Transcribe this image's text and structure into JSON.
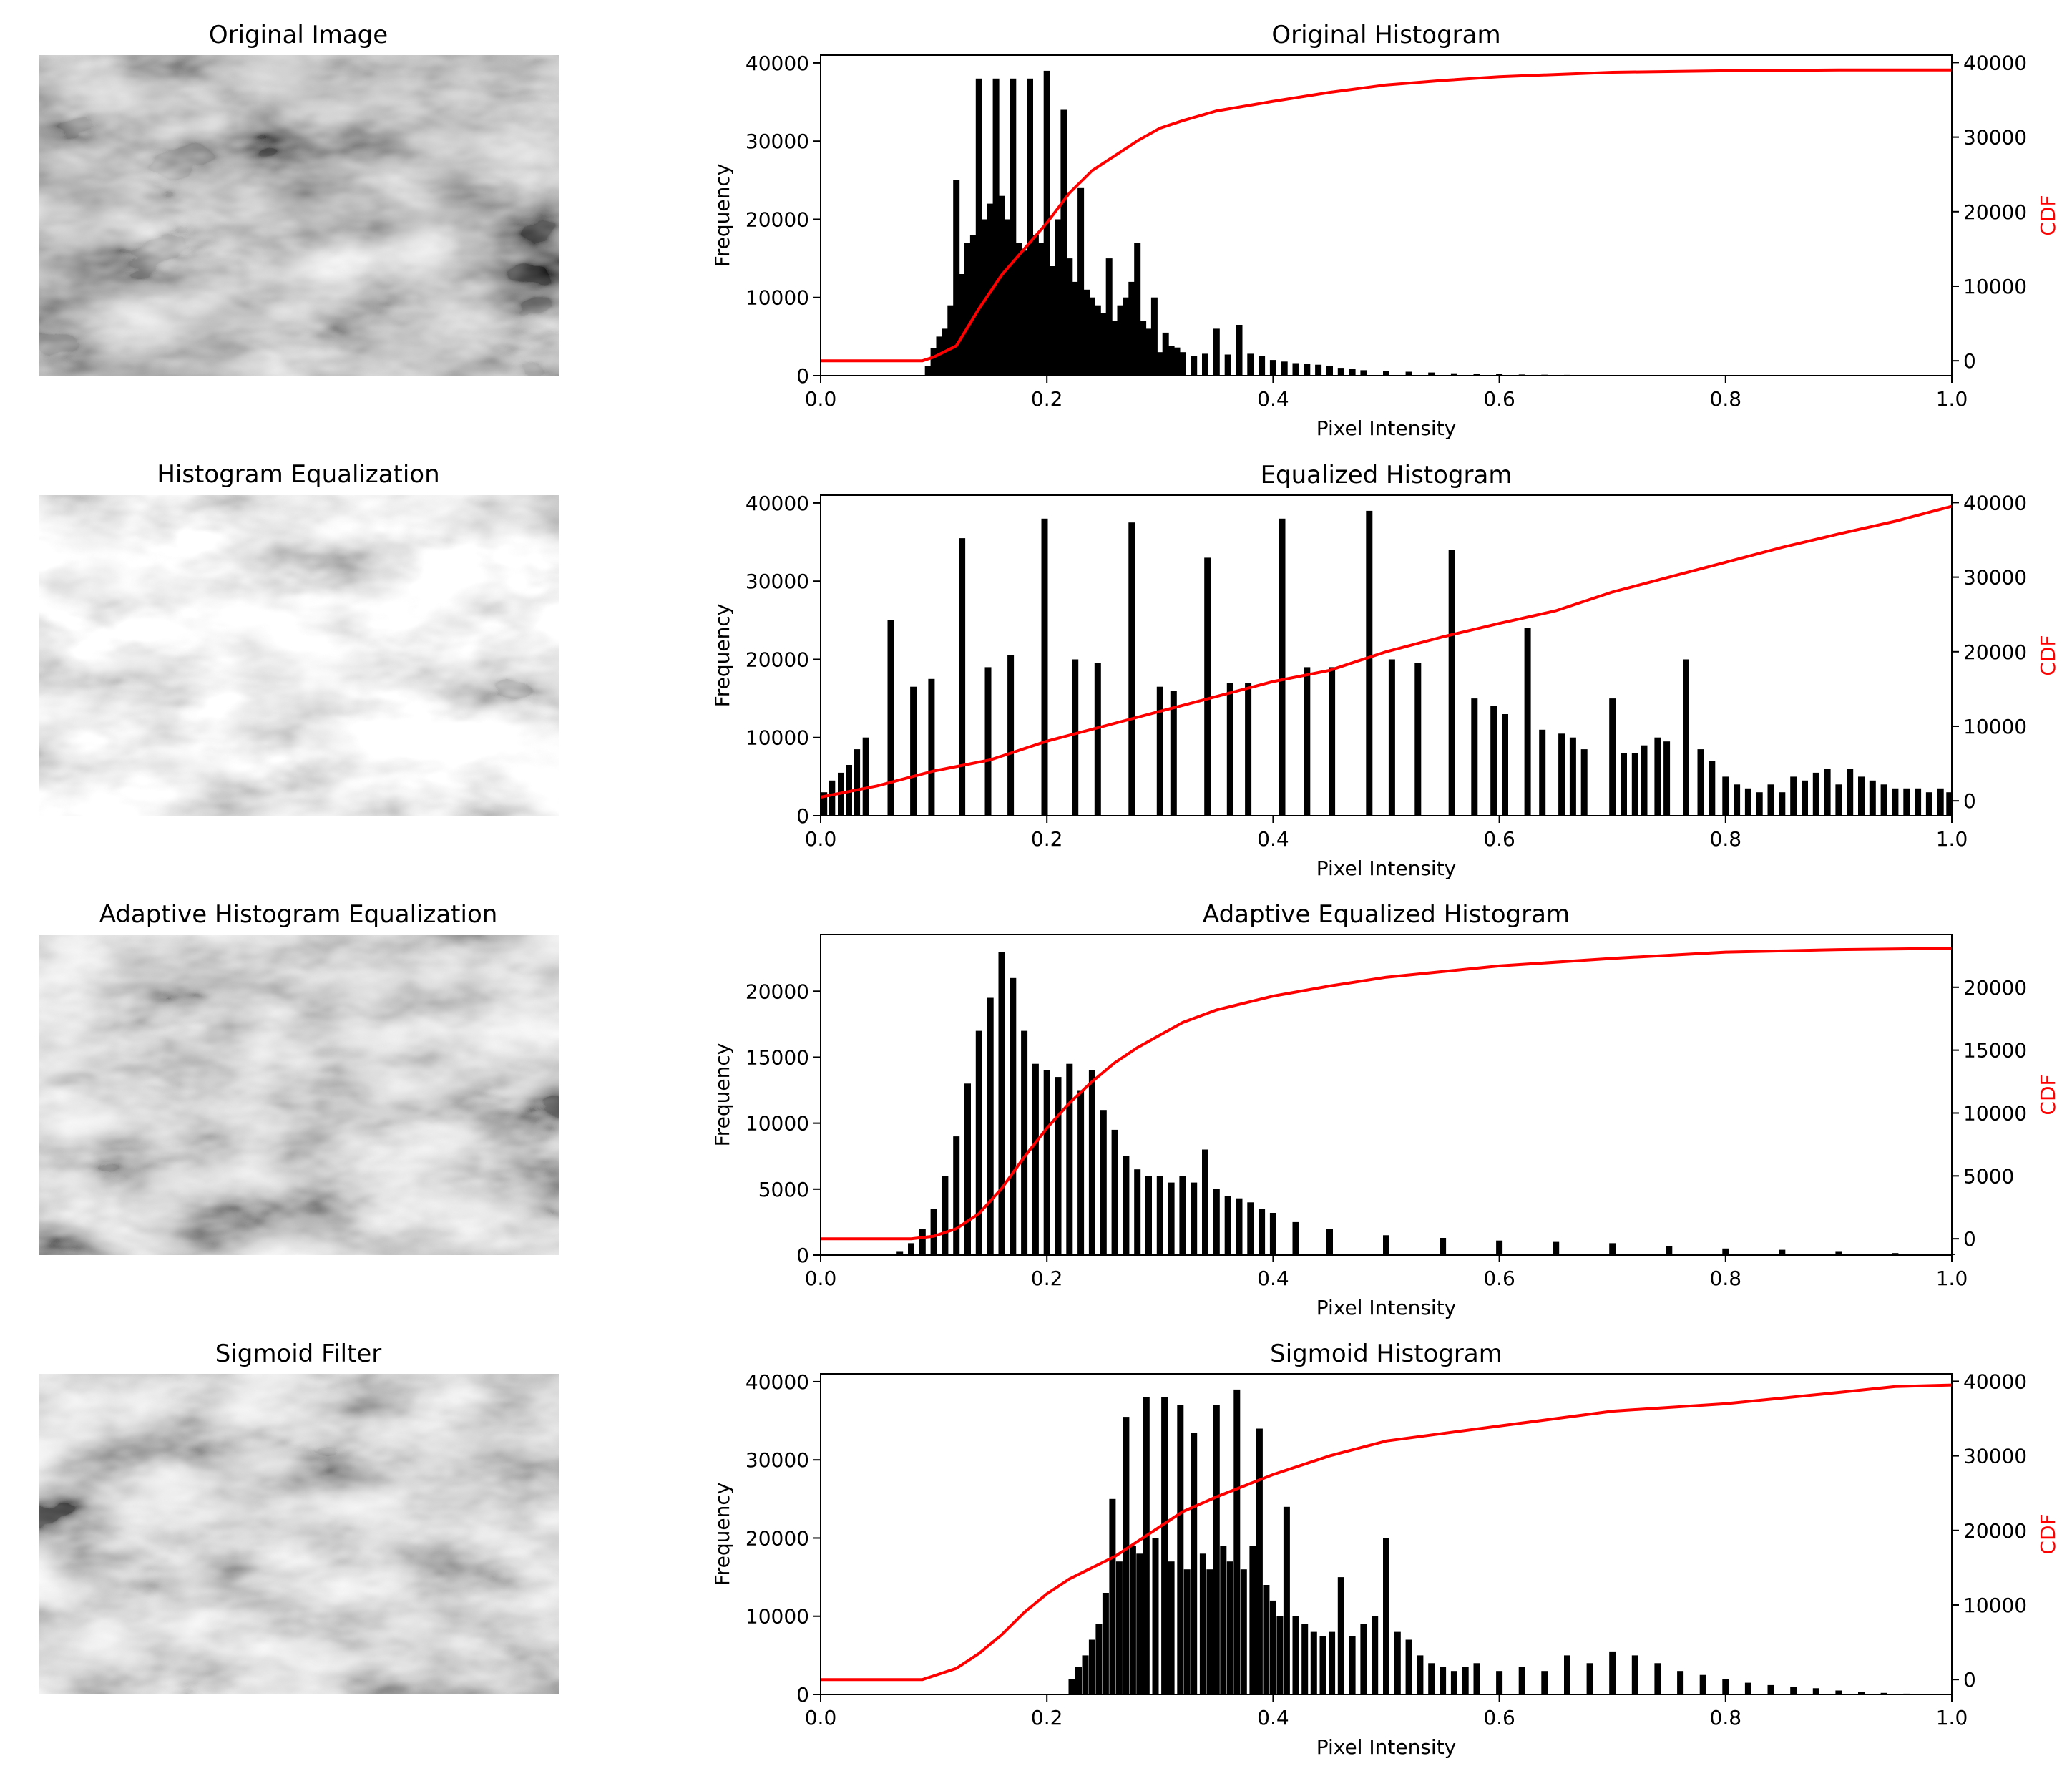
{
  "figure": {
    "background": "#ffffff",
    "bar_color": "#000000",
    "cdf_color": "#ff0000"
  },
  "image_panels": [
    {
      "title": "Original Image",
      "style": "dark"
    },
    {
      "title": "Histogram Equalization",
      "style": "bright"
    },
    {
      "title": "Adaptive Histogram Equalization",
      "style": "medium"
    },
    {
      "title": "Sigmoid Filter",
      "style": "medium"
    }
  ],
  "chart_data": [
    {
      "type": "bar",
      "title": "Original Histogram",
      "xlabel": "Pixel Intensity",
      "ylabel": "Frequency",
      "ylabel2": "CDF",
      "xlim": [
        0.0,
        1.0
      ],
      "ylim": [
        0,
        41000
      ],
      "y2lim": [
        -2000,
        41000
      ],
      "xticks": [
        "0.0",
        "0.2",
        "0.4",
        "0.6",
        "0.8",
        "1.0"
      ],
      "yticks": [
        0,
        10000,
        20000,
        30000,
        40000
      ],
      "y2ticks": [
        0,
        10000,
        20000,
        30000,
        40000
      ],
      "series": [
        {
          "name": "histogram",
          "x": [
            0.095,
            0.1,
            0.105,
            0.11,
            0.115,
            0.12,
            0.125,
            0.13,
            0.135,
            0.14,
            0.145,
            0.15,
            0.155,
            0.16,
            0.165,
            0.17,
            0.175,
            0.18,
            0.185,
            0.19,
            0.195,
            0.2,
            0.205,
            0.21,
            0.215,
            0.22,
            0.225,
            0.23,
            0.235,
            0.24,
            0.245,
            0.25,
            0.255,
            0.26,
            0.265,
            0.27,
            0.275,
            0.28,
            0.285,
            0.29,
            0.295,
            0.3,
            0.305,
            0.31,
            0.315,
            0.32,
            0.33,
            0.34,
            0.35,
            0.36,
            0.37,
            0.38,
            0.39,
            0.4,
            0.41,
            0.42,
            0.43,
            0.44,
            0.45,
            0.46,
            0.47,
            0.48,
            0.5,
            0.52,
            0.54,
            0.56,
            0.58,
            0.6,
            0.62,
            0.64,
            0.66,
            0.68,
            0.7,
            0.72,
            0.75,
            0.78,
            0.8,
            0.82
          ],
          "values": [
            1200,
            3500,
            5000,
            6000,
            9000,
            25000,
            13000,
            17000,
            18000,
            38000,
            20000,
            22000,
            38000,
            23000,
            20000,
            38000,
            17000,
            16000,
            38000,
            18000,
            17000,
            39000,
            14000,
            20000,
            34000,
            15000,
            12000,
            24000,
            11000,
            10000,
            9000,
            8000,
            15000,
            7000,
            9000,
            10000,
            12000,
            17000,
            7000,
            6000,
            10000,
            3000,
            5500,
            3800,
            3600,
            3000,
            2500,
            2800,
            6000,
            2700,
            6500,
            2800,
            2500,
            2000,
            1800,
            1600,
            1500,
            1400,
            1200,
            1000,
            900,
            700,
            600,
            500,
            400,
            300,
            250,
            200,
            150,
            120,
            100,
            80,
            60,
            50,
            30,
            20,
            10,
            5
          ]
        },
        {
          "name": "CDF",
          "x": [
            0.0,
            0.09,
            0.1,
            0.12,
            0.14,
            0.16,
            0.18,
            0.2,
            0.22,
            0.24,
            0.26,
            0.28,
            0.3,
            0.32,
            0.35,
            0.4,
            0.45,
            0.5,
            0.55,
            0.6,
            0.7,
            0.8,
            0.9,
            1.0
          ],
          "values": [
            0,
            0,
            500,
            2000,
            7000,
            11500,
            15000,
            18500,
            22500,
            25500,
            27500,
            29500,
            31200,
            32200,
            33500,
            34800,
            36000,
            37000,
            37600,
            38100,
            38700,
            38900,
            39000,
            39000
          ]
        }
      ]
    },
    {
      "type": "bar",
      "title": "Equalized Histogram",
      "xlabel": "Pixel Intensity",
      "ylabel": "Frequency",
      "ylabel2": "CDF",
      "xlim": [
        0.0,
        1.0
      ],
      "ylim": [
        0,
        41000
      ],
      "y2lim": [
        -2000,
        41000
      ],
      "xticks": [
        "0.0",
        "0.2",
        "0.4",
        "0.6",
        "0.8",
        "1.0"
      ],
      "yticks": [
        0,
        10000,
        20000,
        30000,
        40000
      ],
      "y2ticks": [
        0,
        10000,
        20000,
        30000,
        40000
      ],
      "series": [
        {
          "name": "histogram",
          "x": [
            0.003,
            0.01,
            0.018,
            0.025,
            0.032,
            0.04,
            0.062,
            0.082,
            0.098,
            0.125,
            0.148,
            0.168,
            0.198,
            0.225,
            0.245,
            0.275,
            0.3,
            0.312,
            0.342,
            0.362,
            0.378,
            0.408,
            0.43,
            0.452,
            0.485,
            0.505,
            0.528,
            0.558,
            0.578,
            0.595,
            0.605,
            0.625,
            0.638,
            0.655,
            0.665,
            0.675,
            0.7,
            0.71,
            0.72,
            0.728,
            0.74,
            0.748,
            0.765,
            0.778,
            0.788,
            0.8,
            0.81,
            0.82,
            0.83,
            0.84,
            0.85,
            0.86,
            0.87,
            0.88,
            0.89,
            0.9,
            0.91,
            0.92,
            0.93,
            0.94,
            0.95,
            0.96,
            0.97,
            0.98,
            0.99,
            0.998
          ],
          "values": [
            3000,
            4500,
            5500,
            6500,
            8500,
            10000,
            25000,
            16500,
            17500,
            35500,
            19000,
            20500,
            38000,
            20000,
            19500,
            37500,
            16500,
            16000,
            33000,
            17000,
            17000,
            38000,
            19000,
            19000,
            39000,
            20000,
            19500,
            34000,
            15000,
            14000,
            13000,
            24000,
            11000,
            10500,
            10000,
            8500,
            15000,
            8000,
            8000,
            9000,
            10000,
            9500,
            20000,
            8500,
            7000,
            5000,
            4000,
            3500,
            3000,
            4000,
            3000,
            5000,
            4500,
            5500,
            6000,
            4000,
            6000,
            5000,
            4500,
            4000,
            3500,
            3500,
            3500,
            3000,
            3500,
            3000
          ]
        },
        {
          "name": "CDF",
          "x": [
            0.0,
            0.05,
            0.1,
            0.15,
            0.2,
            0.25,
            0.3,
            0.35,
            0.4,
            0.45,
            0.5,
            0.55,
            0.6,
            0.65,
            0.7,
            0.75,
            0.8,
            0.85,
            0.9,
            0.95,
            1.0
          ],
          "values": [
            500,
            2000,
            4000,
            5500,
            8000,
            10000,
            12000,
            14000,
            16000,
            17500,
            20000,
            22000,
            23800,
            25500,
            28000,
            30000,
            32000,
            34000,
            35800,
            37500,
            39500
          ]
        }
      ]
    },
    {
      "type": "bar",
      "title": "Adaptive Equalized Histogram",
      "xlabel": "Pixel Intensity",
      "ylabel": "Frequency",
      "ylabel2": "CDF",
      "xlim": [
        0.0,
        1.0
      ],
      "ylim": [
        0,
        24300
      ],
      "y2lim": [
        -1300,
        24200
      ],
      "xticks": [
        "0.0",
        "0.2",
        "0.4",
        "0.6",
        "0.8",
        "1.0"
      ],
      "yticks": [
        0,
        5000,
        10000,
        15000,
        20000
      ],
      "y2ticks": [
        0,
        5000,
        10000,
        15000,
        20000
      ],
      "series": [
        {
          "name": "histogram",
          "x": [
            0.06,
            0.07,
            0.08,
            0.09,
            0.1,
            0.11,
            0.12,
            0.13,
            0.14,
            0.15,
            0.16,
            0.17,
            0.18,
            0.19,
            0.2,
            0.21,
            0.22,
            0.23,
            0.24,
            0.25,
            0.26,
            0.27,
            0.28,
            0.29,
            0.3,
            0.31,
            0.32,
            0.33,
            0.34,
            0.35,
            0.36,
            0.37,
            0.38,
            0.39,
            0.4,
            0.42,
            0.45,
            0.5,
            0.55,
            0.6,
            0.65,
            0.7,
            0.75,
            0.8,
            0.85,
            0.9,
            0.95,
            1.0
          ],
          "values": [
            100,
            300,
            900,
            2000,
            3500,
            6000,
            9000,
            13000,
            17000,
            19500,
            23000,
            21000,
            17000,
            14500,
            14000,
            13500,
            14500,
            12500,
            14000,
            11000,
            9500,
            7500,
            6500,
            6000,
            6000,
            5500,
            6000,
            5500,
            8000,
            5000,
            4500,
            4300,
            4000,
            3500,
            3200,
            2500,
            2000,
            1500,
            1300,
            1100,
            1000,
            900,
            700,
            500,
            400,
            300,
            150,
            50
          ]
        },
        {
          "name": "CDF",
          "x": [
            0.0,
            0.08,
            0.1,
            0.12,
            0.14,
            0.16,
            0.18,
            0.2,
            0.22,
            0.24,
            0.26,
            0.28,
            0.3,
            0.32,
            0.35,
            0.4,
            0.45,
            0.5,
            0.6,
            0.7,
            0.8,
            0.9,
            1.0
          ],
          "values": [
            0,
            0,
            200,
            800,
            2000,
            4000,
            6500,
            8800,
            10800,
            12500,
            14000,
            15200,
            16200,
            17200,
            18200,
            19300,
            20100,
            20800,
            21700,
            22300,
            22800,
            23000,
            23100
          ]
        }
      ]
    },
    {
      "type": "bar",
      "title": "Sigmoid Histogram",
      "xlabel": "Pixel Intensity",
      "ylabel": "Frequency",
      "ylabel2": "CDF",
      "xlim": [
        0.0,
        1.0
      ],
      "ylim": [
        0,
        41000
      ],
      "y2lim": [
        -2000,
        41000
      ],
      "xticks": [
        "0.0",
        "0.2",
        "0.4",
        "0.6",
        "0.8",
        "1.0"
      ],
      "yticks": [
        0,
        10000,
        20000,
        30000,
        40000
      ],
      "y2ticks": [
        0,
        10000,
        20000,
        30000,
        40000
      ],
      "series": [
        {
          "name": "histogram",
          "x": [
            0.222,
            0.228,
            0.234,
            0.24,
            0.246,
            0.252,
            0.258,
            0.264,
            0.27,
            0.276,
            0.282,
            0.288,
            0.296,
            0.304,
            0.31,
            0.318,
            0.324,
            0.33,
            0.338,
            0.344,
            0.35,
            0.356,
            0.362,
            0.368,
            0.374,
            0.382,
            0.388,
            0.394,
            0.4,
            0.406,
            0.412,
            0.42,
            0.428,
            0.436,
            0.444,
            0.452,
            0.46,
            0.47,
            0.48,
            0.49,
            0.5,
            0.51,
            0.52,
            0.53,
            0.54,
            0.55,
            0.56,
            0.57,
            0.58,
            0.6,
            0.62,
            0.64,
            0.66,
            0.68,
            0.7,
            0.72,
            0.74,
            0.76,
            0.78,
            0.8,
            0.82,
            0.84,
            0.86,
            0.88,
            0.9,
            0.92,
            0.94,
            0.96,
            0.98
          ],
          "values": [
            2000,
            3500,
            5000,
            7000,
            9000,
            13000,
            25000,
            17000,
            35500,
            19000,
            18000,
            38000,
            20000,
            38000,
            17000,
            37000,
            16000,
            33500,
            18000,
            16000,
            37000,
            19000,
            17000,
            39000,
            16000,
            19000,
            34000,
            14000,
            12000,
            10000,
            24000,
            10000,
            9000,
            8000,
            7500,
            8000,
            15000,
            7500,
            9000,
            10000,
            20000,
            8000,
            7000,
            5000,
            4000,
            3500,
            3000,
            3500,
            4000,
            3000,
            3500,
            3000,
            5000,
            4000,
            5500,
            5000,
            4000,
            3000,
            2500,
            2000,
            1500,
            1200,
            1000,
            800,
            500,
            300,
            200,
            100,
            50
          ]
        },
        {
          "name": "CDF",
          "x": [
            0.0,
            0.09,
            0.1,
            0.12,
            0.14,
            0.16,
            0.18,
            0.2,
            0.22,
            0.24,
            0.26,
            0.28,
            0.3,
            0.32,
            0.35,
            0.4,
            0.45,
            0.5,
            0.55,
            0.6,
            0.7,
            0.8,
            0.9,
            0.95,
            1.0
          ],
          "values": [
            0,
            0,
            500,
            1500,
            3500,
            6000,
            9000,
            11500,
            13500,
            15000,
            16500,
            18500,
            20500,
            22500,
            24500,
            27500,
            30000,
            32000,
            33000,
            34000,
            36000,
            37000,
            38500,
            39300,
            39500
          ]
        }
      ]
    }
  ]
}
